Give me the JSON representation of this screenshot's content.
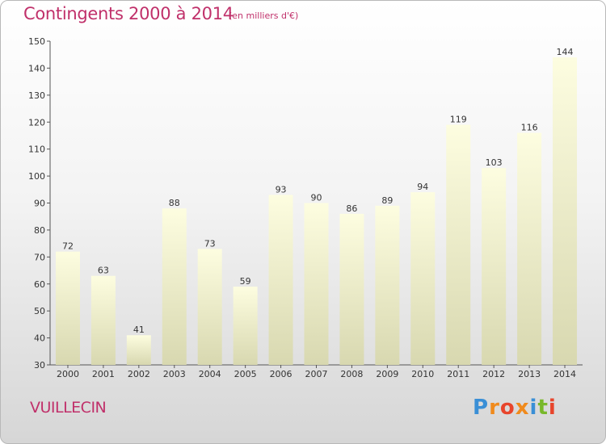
{
  "header": {
    "title": "Contingents 2000 à 2014",
    "subtitle": "(en milliers d'€)"
  },
  "footer": {
    "commune": "VUILLECIN",
    "logo_text": "Proxiti",
    "logo_colors": [
      "#3a8fd6",
      "#f08a1c",
      "#e8452c",
      "#f08a1c",
      "#3a8fd6",
      "#78b82a",
      "#e8452c"
    ]
  },
  "chart_data": {
    "type": "bar",
    "categories": [
      "2000",
      "2001",
      "2002",
      "2003",
      "2004",
      "2005",
      "2006",
      "2007",
      "2008",
      "2009",
      "2010",
      "2011",
      "2012",
      "2013",
      "2014"
    ],
    "values": [
      72,
      63,
      41,
      88,
      73,
      59,
      93,
      90,
      86,
      89,
      94,
      119,
      103,
      116,
      144
    ],
    "data_labels": [
      "72",
      "63",
      "41",
      "88",
      "73",
      "59",
      "93",
      "90",
      "86",
      "89",
      "94",
      "119",
      "103",
      "116",
      "144"
    ],
    "ylim": [
      30,
      150
    ],
    "yticks": [
      "30",
      "40",
      "50",
      "60",
      "70",
      "80",
      "90",
      "100",
      "110",
      "120",
      "130",
      "140",
      "150"
    ],
    "bar_color_top": "#fdfde0",
    "bar_color_bottom": "#d8d8b0",
    "grid": false
  }
}
